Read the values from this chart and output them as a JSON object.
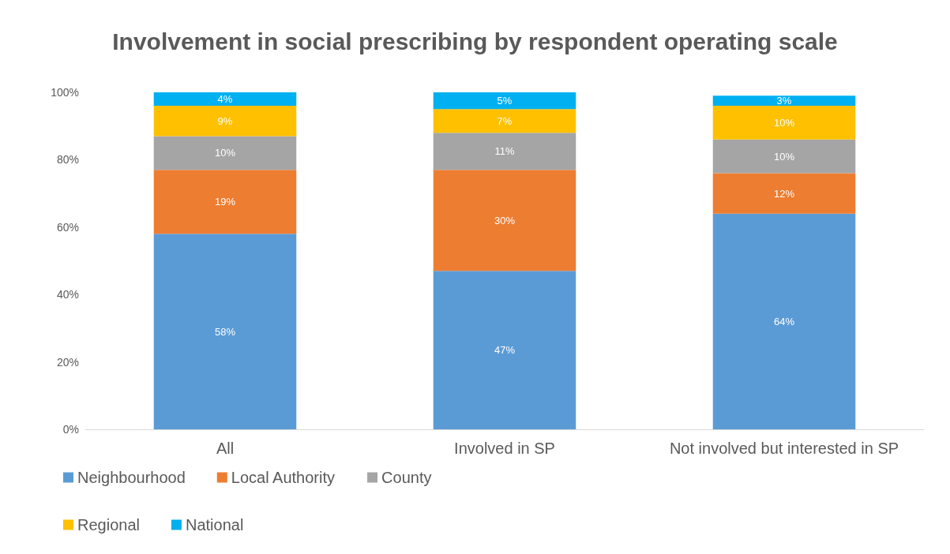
{
  "chart_data": {
    "type": "bar",
    "stacked": true,
    "title": "Involvement in social prescribing by respondent operating scale",
    "categories": [
      "All",
      "Involved in SP",
      "Not involved but interested in SP"
    ],
    "series": [
      {
        "name": "Neighbourhood",
        "color": "#5b9bd5",
        "values": [
          58,
          47,
          64
        ],
        "value_labels": [
          "58%",
          "47%",
          "64%"
        ]
      },
      {
        "name": "Local Authority",
        "color": "#ed7d31",
        "values": [
          19,
          30,
          12
        ],
        "value_labels": [
          "19%",
          "30%",
          "12%"
        ]
      },
      {
        "name": "County",
        "color": "#a5a5a5",
        "values": [
          10,
          11,
          10
        ],
        "value_labels": [
          "10%",
          "11%",
          "10%"
        ]
      },
      {
        "name": "Regional",
        "color": "#ffc000",
        "values": [
          9,
          7,
          10
        ],
        "value_labels": [
          "9%",
          "7%",
          "10%"
        ]
      },
      {
        "name": "National",
        "color": "#00b0f0",
        "values": [
          4,
          5,
          3
        ],
        "value_labels": [
          "4%",
          "5%",
          "3%"
        ]
      }
    ],
    "ylim": [
      0,
      100
    ],
    "yticks": [
      {
        "value": 0,
        "label": "0%"
      },
      {
        "value": 20,
        "label": "20%"
      },
      {
        "value": 40,
        "label": "40%"
      },
      {
        "value": 60,
        "label": "60%"
      },
      {
        "value": 80,
        "label": "80%"
      },
      {
        "value": 100,
        "label": "100%"
      }
    ],
    "grid": false,
    "legend": "bottom left"
  }
}
